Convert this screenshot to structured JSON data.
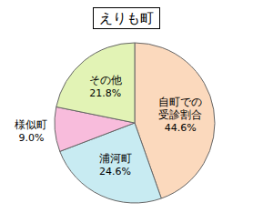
{
  "chart_data": {
    "type": "pie",
    "title": "えりも町",
    "categories": [
      "自町での受診割合",
      "浦河町",
      "様似町",
      "その他"
    ],
    "values": [
      44.6,
      24.6,
      9.0,
      21.8
    ],
    "value_labels": [
      "44.6%",
      "24.6%",
      "9.0%",
      "21.8%"
    ],
    "colors": [
      "#fbd9bd",
      "#c8ebf2",
      "#f8bcdc",
      "#e2f3b5"
    ],
    "data_labels": true
  }
}
